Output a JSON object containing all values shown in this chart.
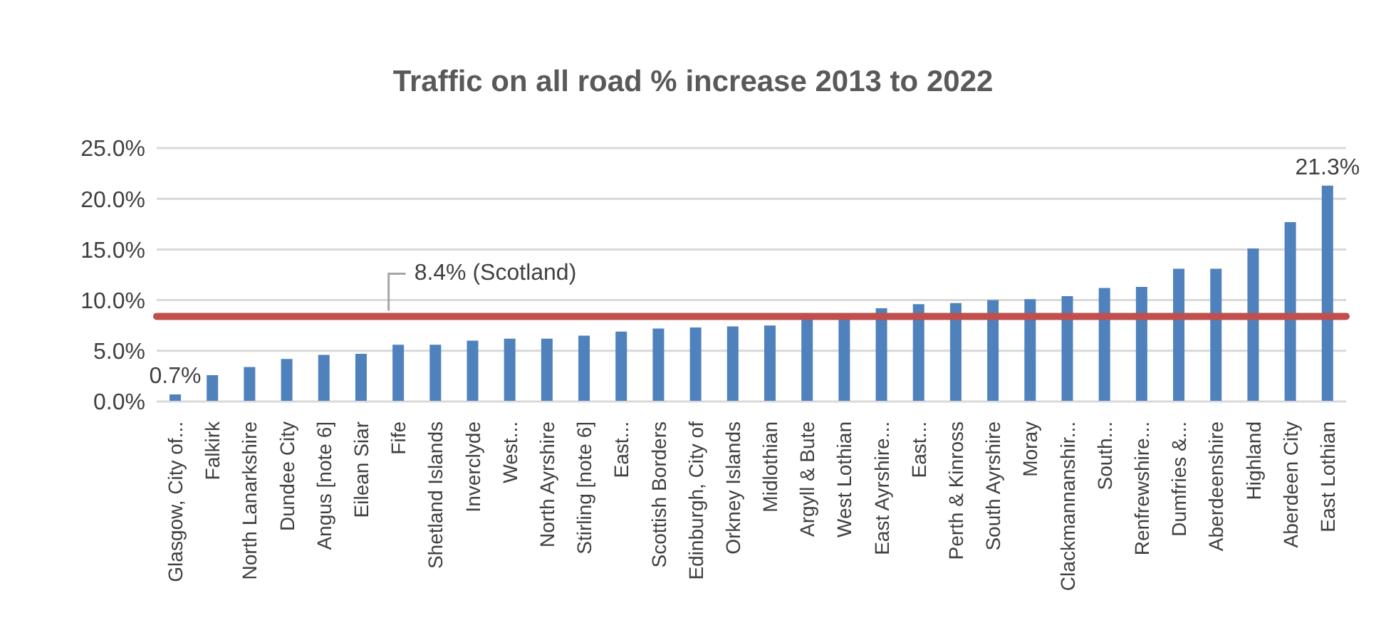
{
  "chart_data": {
    "type": "bar",
    "title": "Traffic on all road % increase 2013 to 2022",
    "categories": [
      "Glasgow, City of...",
      "Falkirk",
      "North Lanarkshire",
      "Dundee City",
      "Angus [note 6]",
      "Eilean Siar",
      "Fife",
      "Shetland Islands",
      "Inverclyde",
      "West...",
      "North Ayrshire",
      "Stirling [note 6]",
      "East...",
      "Scottish Borders",
      "Edinburgh, City of",
      "Orkney Islands",
      "Midlothian",
      "Argyll & Bute",
      "West Lothian",
      "East Ayrshire...",
      "East...",
      "Perth & Kinross",
      "South Ayrshire",
      "Moray",
      "Clackmannanshir...",
      "South...",
      "Renfrewshire...",
      "Dumfries &...",
      "Aberdeenshire",
      "Highland",
      "Aberdeen City",
      "East Lothian"
    ],
    "values": [
      0.7,
      2.6,
      3.4,
      4.2,
      4.6,
      4.7,
      5.6,
      5.6,
      6.0,
      6.2,
      6.2,
      6.5,
      6.9,
      7.2,
      7.3,
      7.4,
      7.5,
      8.1,
      8.1,
      9.2,
      9.6,
      9.7,
      10.0,
      10.1,
      10.4,
      11.2,
      11.3,
      13.1,
      13.1,
      15.1,
      17.7,
      21.3
    ],
    "value_labels": [
      "0.7%",
      null,
      null,
      null,
      null,
      null,
      null,
      null,
      null,
      null,
      null,
      null,
      null,
      null,
      null,
      null,
      null,
      null,
      null,
      null,
      null,
      null,
      null,
      null,
      null,
      null,
      null,
      null,
      null,
      null,
      null,
      "21.3%"
    ],
    "color": "#4f81bd",
    "ylim": [
      0,
      25
    ],
    "yticks": [
      {
        "value": 0,
        "label": "0.0%"
      },
      {
        "value": 5,
        "label": "5.0%"
      },
      {
        "value": 10,
        "label": "10.0%"
      },
      {
        "value": 15,
        "label": "15.0%"
      },
      {
        "value": 20,
        "label": "20.0%"
      },
      {
        "value": 25,
        "label": "25.0%"
      }
    ],
    "grid": "y",
    "legend": false,
    "ref_lines": [
      {
        "axis": "y",
        "value": 8.4,
        "label": "8.4% (Scotland)",
        "color": "#c0504d"
      }
    ]
  }
}
